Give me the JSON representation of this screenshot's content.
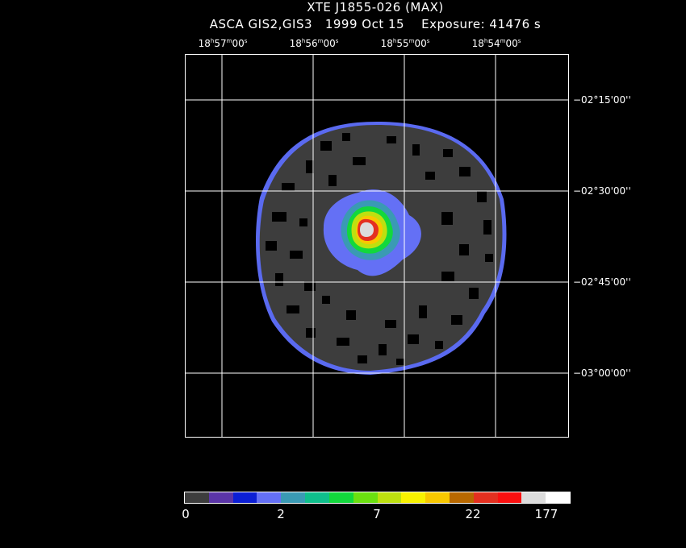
{
  "header": {
    "title_line_1": "XTE J1855-026 (MAX)",
    "title_line_2": "ASCA GIS2,GIS3   1999 Oct 15    Exposure: 41476 s"
  },
  "ra_axis": [
    {
      "h": "18",
      "m": "57",
      "s": "00"
    },
    {
      "h": "18",
      "m": "56",
      "s": "00"
    },
    {
      "h": "18",
      "m": "55",
      "s": "00"
    },
    {
      "h": "18",
      "m": "54",
      "s": "00"
    }
  ],
  "dec_axis": [
    "−02°15'00''",
    "−02°30'00''",
    "−02°45'00''",
    "−03°00'00''"
  ],
  "colorbar": {
    "colors": [
      "#3d3d3d",
      "#5b35a8",
      "#0c1fd4",
      "#6470f5",
      "#3a9ab4",
      "#0fbf8c",
      "#12d83c",
      "#6be010",
      "#bde010",
      "#f8f200",
      "#f8c800",
      "#b86800",
      "#e43020",
      "#fa1010",
      "#dcdcdc",
      "#ffffff"
    ],
    "tick_labels": [
      "0",
      "2",
      "7",
      "22",
      "177"
    ]
  },
  "image": {
    "background_color": "#3d3d3d",
    "source_core_color": "#dcdcdc",
    "grid_color": "#ffffff"
  }
}
